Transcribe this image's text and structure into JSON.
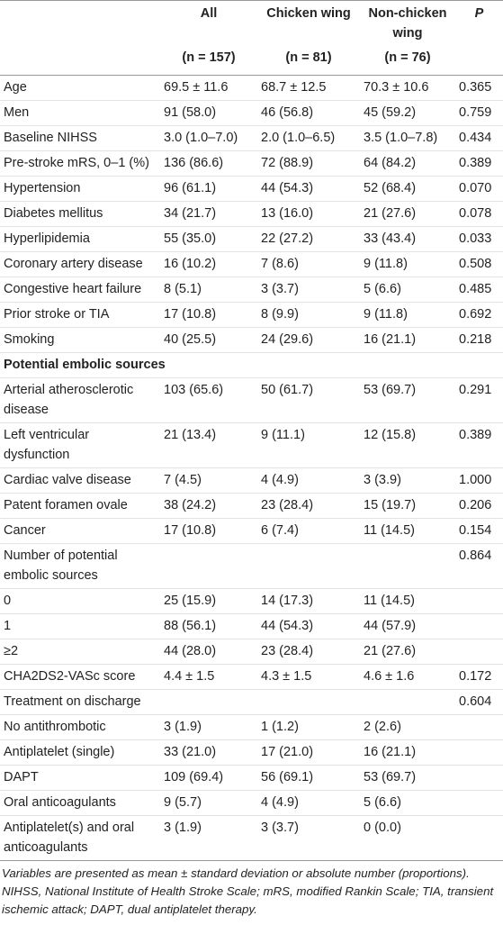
{
  "table": {
    "columns": [
      "All",
      "Chicken wing",
      "Non-chicken wing",
      "P"
    ],
    "n": [
      "(n = 157)",
      "(n = 81)",
      "(n = 76)"
    ],
    "rows": [
      {
        "label": "Age",
        "all": "69.5 ± 11.6",
        "chicken": "68.7 ± 12.5",
        "non_chicken": "70.3 ± 10.6",
        "p": "0.365"
      },
      {
        "label": "Men",
        "all": "91 (58.0)",
        "chicken": "46 (56.8)",
        "non_chicken": "45 (59.2)",
        "p": "0.759"
      },
      {
        "label": "Baseline NIHSS",
        "all": "3.0 (1.0–7.0)",
        "chicken": "2.0 (1.0–6.5)",
        "non_chicken": "3.5 (1.0–7.8)",
        "p": "0.434"
      },
      {
        "label": "Pre-stroke mRS, 0–1 (%)",
        "all": "136 (86.6)",
        "chicken": "72 (88.9)",
        "non_chicken": "64 (84.2)",
        "p": "0.389"
      },
      {
        "label": "Hypertension",
        "all": "96 (61.1)",
        "chicken": "44 (54.3)",
        "non_chicken": "52 (68.4)",
        "p": "0.070"
      },
      {
        "label": "Diabetes mellitus",
        "all": "34 (21.7)",
        "chicken": "13 (16.0)",
        "non_chicken": "21 (27.6)",
        "p": "0.078"
      },
      {
        "label": "Hyperlipidemia",
        "all": "55 (35.0)",
        "chicken": "22 (27.2)",
        "non_chicken": "33 (43.4)",
        "p": "0.033"
      },
      {
        "label": "Coronary artery disease",
        "all": "16 (10.2)",
        "chicken": "7 (8.6)",
        "non_chicken": "9 (11.8)",
        "p": "0.508"
      },
      {
        "label": "Congestive heart failure",
        "all": "8 (5.1)",
        "chicken": "3 (3.7)",
        "non_chicken": "5 (6.6)",
        "p": "0.485"
      },
      {
        "label": "Prior stroke or TIA",
        "all": "17 (10.8)",
        "chicken": "8 (9.9)",
        "non_chicken": "9 (11.8)",
        "p": "0.692"
      },
      {
        "label": "Smoking",
        "all": "40 (25.5)",
        "chicken": "24 (29.6)",
        "non_chicken": "16 (21.1)",
        "p": "0.218"
      },
      {
        "section": "Potential embolic sources"
      },
      {
        "label": "Arterial atherosclerotic disease",
        "all": "103 (65.6)",
        "chicken": "50 (61.7)",
        "non_chicken": "53 (69.7)",
        "p": "0.291"
      },
      {
        "label": "Left ventricular dysfunction",
        "all": "21 (13.4)",
        "chicken": "9 (11.1)",
        "non_chicken": "12 (15.8)",
        "p": "0.389"
      },
      {
        "label": "Cardiac valve disease",
        "all": "7 (4.5)",
        "chicken": "4 (4.9)",
        "non_chicken": "3 (3.9)",
        "p": "1.000"
      },
      {
        "label": "Patent foramen ovale",
        "all": "38 (24.2)",
        "chicken": "23 (28.4)",
        "non_chicken": "15 (19.7)",
        "p": "0.206"
      },
      {
        "label": "Cancer",
        "all": "17 (10.8)",
        "chicken": "6 (7.4)",
        "non_chicken": "11 (14.5)",
        "p": "0.154"
      },
      {
        "label": "Number of potential embolic sources",
        "p": "0.864"
      },
      {
        "label": "0",
        "all": "25 (15.9)",
        "chicken": "14 (17.3)",
        "non_chicken": "11 (14.5)"
      },
      {
        "label": "1",
        "all": "88 (56.1)",
        "chicken": "44 (54.3)",
        "non_chicken": "44 (57.9)"
      },
      {
        "label": "≥2",
        "all": "44 (28.0)",
        "chicken": "23 (28.4)",
        "non_chicken": "21 (27.6)"
      },
      {
        "label": "CHA2DS2-VASc score",
        "all": "4.4 ± 1.5",
        "chicken": "4.3 ± 1.5",
        "non_chicken": "4.6 ± 1.6",
        "p": "0.172"
      },
      {
        "label": "Treatment on discharge",
        "p": "0.604"
      },
      {
        "label": "No antithrombotic",
        "all": "3 (1.9)",
        "chicken": "1 (1.2)",
        "non_chicken": "2 (2.6)"
      },
      {
        "label": "Antiplatelet (single)",
        "all": "33 (21.0)",
        "chicken": "17 (21.0)",
        "non_chicken": "16 (21.1)"
      },
      {
        "label": "DAPT",
        "all": "109 (69.4)",
        "chicken": "56 (69.1)",
        "non_chicken": "53 (69.7)"
      },
      {
        "label": "Oral anticoagulants",
        "all": "9 (5.7)",
        "chicken": "4 (4.9)",
        "non_chicken": "5 (6.6)"
      },
      {
        "label": "Antiplatelet(s) and oral anticoagulants",
        "all": "3 (1.9)",
        "chicken": "3 (3.7)",
        "non_chicken": "0 (0.0)"
      }
    ],
    "footnote": "Variables are presented as mean ± standard deviation or absolute number (proportions). NIHSS, National Institute of Health Stroke Scale; mRS, modified Rankin Scale; TIA, transient ischemic attack; DAPT, dual antiplatelet therapy."
  }
}
